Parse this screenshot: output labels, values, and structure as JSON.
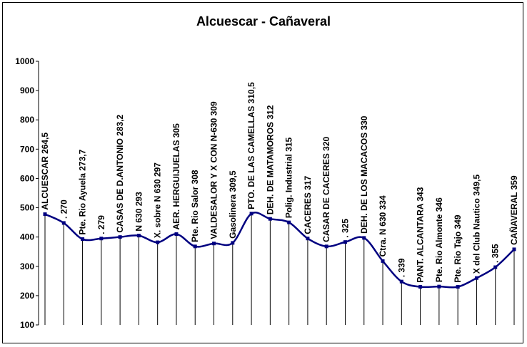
{
  "chart_data": {
    "type": "line",
    "title": "Alcuescar - Cañaveral",
    "xlabel": "",
    "ylabel": "",
    "ylim": [
      100,
      1000
    ],
    "yticks": [
      100,
      200,
      300,
      400,
      500,
      600,
      700,
      800,
      900,
      1000
    ],
    "grid": false,
    "legend": "none",
    "series_color": "#000080",
    "drop_line_color": "#000000",
    "points": [
      {
        "label": "ALCUESCAR 264,5",
        "y": 478
      },
      {
        "label": ". 270",
        "y": 448
      },
      {
        "label": "Pte. Rio Ayuela 273,7",
        "y": 393
      },
      {
        "label": ". 279",
        "y": 395
      },
      {
        "label": "CASAS DE D.ANTONIO 283,2",
        "y": 400
      },
      {
        "label": "N 630 293",
        "y": 405
      },
      {
        "label": "X. sobre N 630 297",
        "y": 382
      },
      {
        "label": "AER. HERGUIJUELAS 305",
        "y": 410
      },
      {
        "label": "Pte. Rio Salor 308",
        "y": 368
      },
      {
        "label": "VALDESALOR Y X CON N-630 309",
        "y": 378
      },
      {
        "label": "Gasolinera 309,5",
        "y": 380
      },
      {
        "label": "PTO. DE LAS CAMELLAS 310,5",
        "y": 480
      },
      {
        "label": "DEH. DE MATAMOROS 312",
        "y": 462
      },
      {
        "label": "Polig. Industrial 315",
        "y": 450
      },
      {
        "label": "CACERES 317",
        "y": 395
      },
      {
        "label": "CASAR DE CACERES 320",
        "y": 368
      },
      {
        "label": ". 325",
        "y": 383
      },
      {
        "label": "DEH. DE LOS MACACOS 330",
        "y": 397
      },
      {
        "label": "Ctra. N 630 334",
        "y": 318
      },
      {
        "label": ". 339",
        "y": 248
      },
      {
        "label": "PANT. ALCANTARA 343",
        "y": 230
      },
      {
        "label": "Pte. Rio Almonte 346",
        "y": 231
      },
      {
        "label": "Pte. Rio Tajo 349",
        "y": 230
      },
      {
        "label": "X del Club Nautico 349,5",
        "y": 260
      },
      {
        "label": ". 355",
        "y": 297
      },
      {
        "label": "CAÑAVERAL 359",
        "y": 358
      }
    ]
  }
}
